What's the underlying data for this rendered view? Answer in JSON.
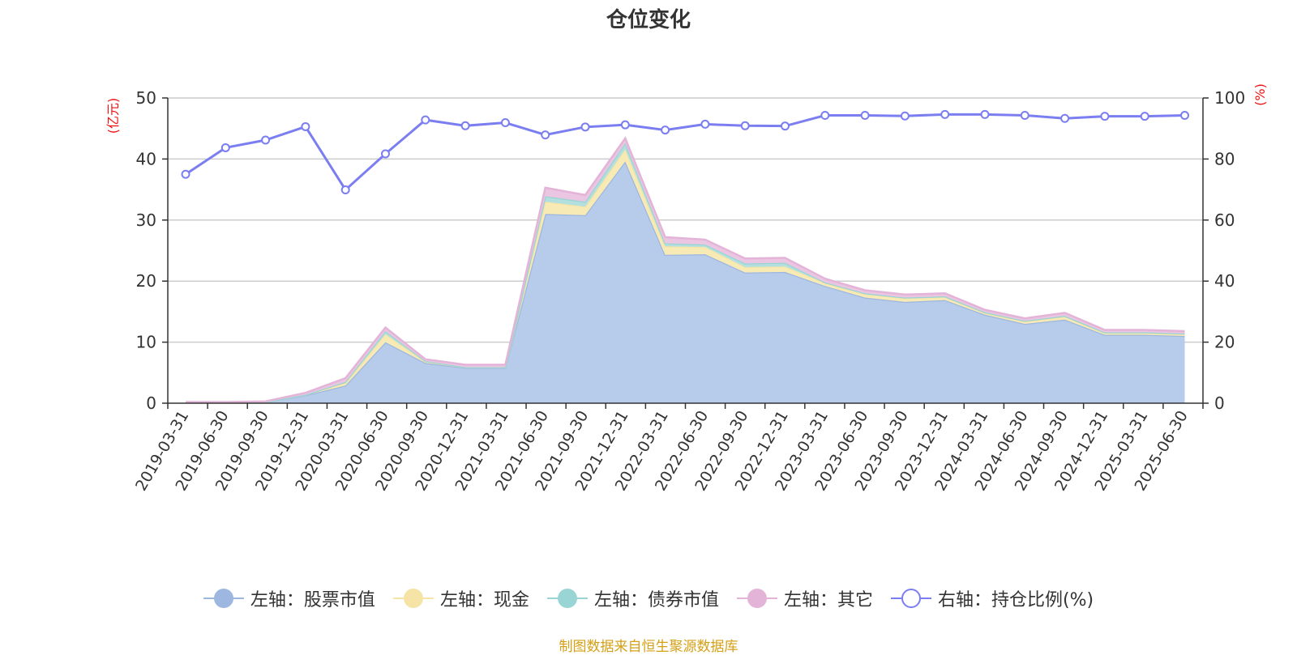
{
  "chart_data": {
    "type": "area",
    "title": "仓位变化",
    "left_unit": "(亿元)",
    "right_unit": "(%)",
    "ylim_left": [
      0,
      50
    ],
    "ylim_right": [
      0,
      100
    ],
    "yticks_left": [
      "0",
      "10",
      "20",
      "30",
      "40",
      "50"
    ],
    "yticks_right": [
      "0",
      "20",
      "40",
      "60",
      "80",
      "100"
    ],
    "grid": true,
    "legend_position": "bottom",
    "categories": [
      "2019-03-31",
      "2019-06-30",
      "2019-09-30",
      "2019-12-31",
      "2020-03-31",
      "2020-06-30",
      "2020-09-30",
      "2020-12-31",
      "2021-03-31",
      "2021-06-30",
      "2021-09-30",
      "2021-12-31",
      "2022-03-31",
      "2022-06-30",
      "2022-09-30",
      "2022-12-31",
      "2023-03-31",
      "2023-06-30",
      "2023-09-30",
      "2023-12-31",
      "2024-03-31",
      "2024-06-30",
      "2024-09-30",
      "2024-12-31",
      "2025-03-31",
      "2025-06-30"
    ],
    "series": [
      {
        "name": "左轴：股票市值",
        "axis": "left",
        "stacked": true,
        "color": "#9db7e0",
        "fill": "#b7cbea",
        "values": [
          0.1,
          0.1,
          0.2,
          1.3,
          2.9,
          10.0,
          6.6,
          5.8,
          5.8,
          31.0,
          30.8,
          39.6,
          24.3,
          24.4,
          21.4,
          21.5,
          19.2,
          17.3,
          16.6,
          16.9,
          14.5,
          13.0,
          13.7,
          11.2,
          11.2,
          11.0
        ]
      },
      {
        "name": "左轴：现金",
        "axis": "left",
        "stacked": true,
        "color": "#f5e4a6",
        "fill": "#f8eab5",
        "values": [
          0.0,
          0.0,
          0.0,
          0.1,
          0.4,
          1.3,
          0.2,
          0.1,
          0.1,
          2.0,
          1.4,
          2.0,
          1.4,
          1.2,
          0.9,
          0.9,
          0.5,
          0.6,
          0.6,
          0.5,
          0.3,
          0.4,
          0.5,
          0.3,
          0.3,
          0.3
        ]
      },
      {
        "name": "左轴：债券市值",
        "axis": "left",
        "stacked": true,
        "color": "#98d5d4",
        "fill": "#b3e0df",
        "values": [
          0.0,
          0.0,
          0.0,
          0.0,
          0.2,
          0.5,
          0.1,
          0.0,
          0.0,
          0.9,
          0.8,
          1.0,
          0.5,
          0.4,
          0.6,
          0.6,
          0.1,
          0.1,
          0.1,
          0.1,
          0.1,
          0.1,
          0.1,
          0.1,
          0.1,
          0.1
        ]
      },
      {
        "name": "左轴：其它",
        "axis": "left",
        "stacked": true,
        "color": "#e4b4d8",
        "fill": "#eac6e2",
        "values": [
          0.1,
          0.1,
          0.1,
          0.3,
          0.6,
          0.6,
          0.3,
          0.4,
          0.4,
          1.4,
          1.1,
          0.8,
          1.0,
          0.8,
          0.8,
          0.8,
          0.6,
          0.5,
          0.5,
          0.5,
          0.4,
          0.4,
          0.5,
          0.4,
          0.4,
          0.4
        ]
      },
      {
        "name": "右轴：持仓比例(%)",
        "axis": "right",
        "stacked": false,
        "color": "#7b7ef0",
        "values": [
          75.0,
          83.7,
          86.2,
          90.6,
          69.9,
          81.7,
          92.8,
          90.9,
          91.9,
          87.9,
          90.5,
          91.2,
          89.5,
          91.4,
          90.9,
          90.8,
          94.3,
          94.3,
          94.1,
          94.6,
          94.6,
          94.3,
          93.3,
          94.0,
          94.0,
          94.3
        ]
      }
    ]
  },
  "legend": [
    {
      "label": "左轴：股票市值",
      "color": "#9db7e0",
      "hollow": false
    },
    {
      "label": "左轴：现金",
      "color": "#f5e4a6",
      "hollow": false
    },
    {
      "label": "左轴：债券市值",
      "color": "#98d5d4",
      "hollow": false
    },
    {
      "label": "左轴：其它",
      "color": "#e4b4d8",
      "hollow": false
    },
    {
      "label": "右轴：持仓比例(%)",
      "color": "#7b7ef0",
      "hollow": true
    }
  ],
  "source": "制图数据来自恒生聚源数据库"
}
